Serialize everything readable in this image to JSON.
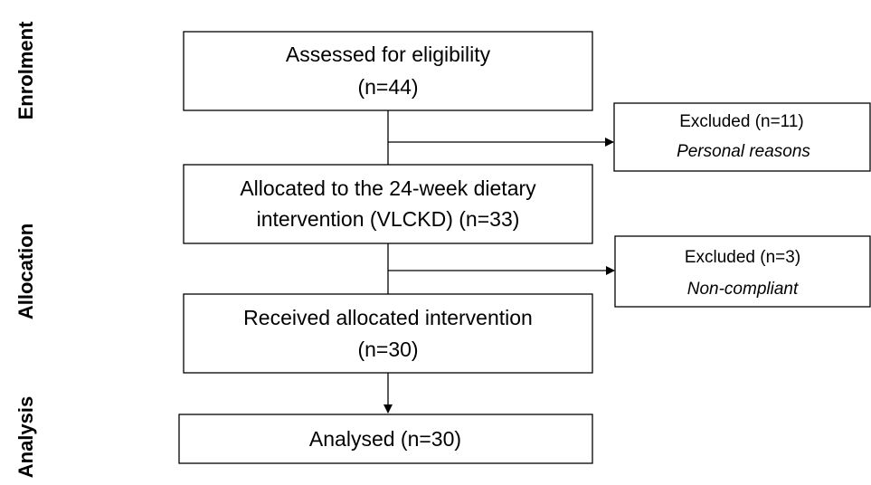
{
  "stages": [
    "Enrolment",
    "Allocation",
    "Analysis"
  ],
  "boxes": [
    {
      "lines": [
        "Assessed for eligibility",
        "(n=44)"
      ]
    },
    {
      "lines": [
        "Allocated to the 24-week dietary",
        "intervention (VLCKD) (n=33)"
      ]
    },
    {
      "lines": [
        "Received allocated intervention",
        "(n=30)"
      ]
    },
    {
      "lines": [
        "Analysed (n=30)"
      ]
    }
  ],
  "exclusions": [
    {
      "lines": [
        "Excluded (n=11)",
        "Personal reasons"
      ]
    },
    {
      "lines": [
        "Excluded (n=3)",
        "Non-compliant"
      ]
    }
  ]
}
